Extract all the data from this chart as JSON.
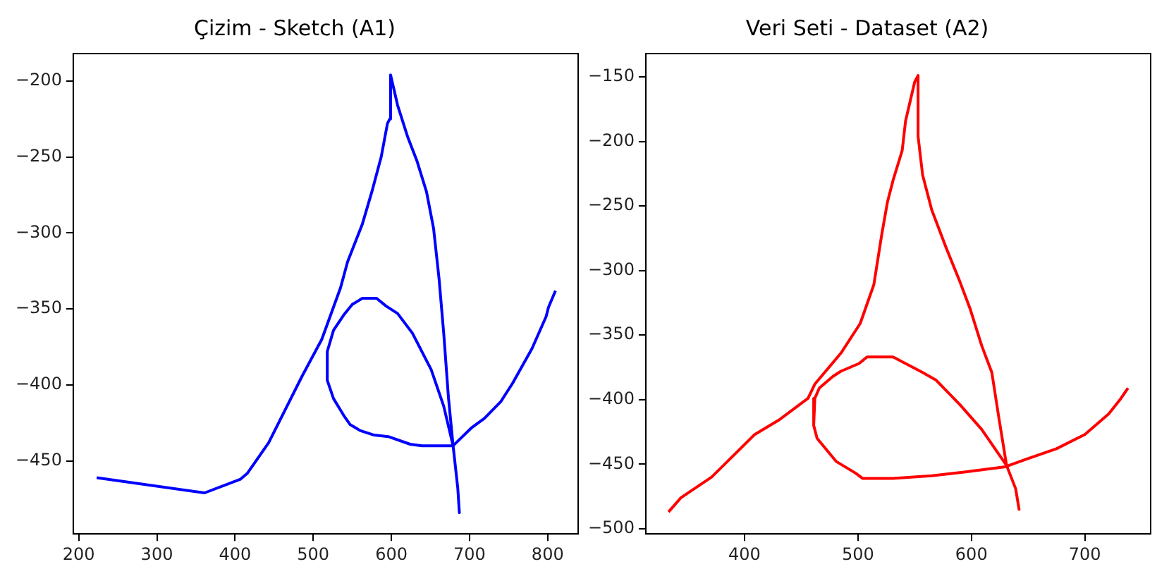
{
  "chart_data": [
    {
      "type": "line",
      "title": "Çizim - Sketch (A1)",
      "xlim": [
        193,
        839
      ],
      "ylim": [
        -498,
        -182
      ],
      "xticks": [
        200,
        300,
        400,
        500,
        600,
        700,
        800
      ],
      "yticks": [
        -450,
        -400,
        -350,
        -300,
        -250,
        -200
      ],
      "series": [
        {
          "color": "#0000ff",
          "x": [
            223,
            361,
            407,
            416,
            443,
            486,
            511,
            535,
            544,
            563,
            575,
            587,
            595,
            598,
            599,
            608,
            621,
            633,
            645,
            654,
            661,
            667,
            673,
            679,
            685,
            687,
            685,
            679,
            651,
            639,
            624,
            596,
            578,
            560,
            547,
            539,
            526,
            518,
            518,
            526,
            539,
            550,
            563,
            581,
            593,
            608,
            627,
            651,
            667,
            679,
            703,
            719,
            740,
            755,
            780,
            798,
            801,
            810
          ],
          "values": [
            -461,
            -471,
            -462,
            -458,
            -438,
            -394,
            -370,
            -336,
            -319,
            -294,
            -273,
            -250,
            -228,
            -225,
            -196,
            -216,
            -237,
            -253,
            -273,
            -297,
            -330,
            -366,
            -408,
            -440,
            -468,
            -484,
            -468,
            -440,
            -440,
            -440,
            -439,
            -434,
            -433,
            -430,
            -426,
            -420,
            -409,
            -397,
            -378,
            -364,
            -354,
            -347,
            -343,
            -343,
            -348,
            -353,
            -366,
            -390,
            -414,
            -440,
            -428,
            -422,
            -411,
            -399,
            -376,
            -355,
            -349,
            -338
          ]
        }
      ]
    },
    {
      "type": "line",
      "title": "Veri Seti - Dataset (A2)",
      "xlim": [
        313,
        758
      ],
      "ylim": [
        -504,
        -132
      ],
      "xticks": [
        400,
        500,
        600,
        700
      ],
      "yticks": [
        -500,
        -450,
        -400,
        -350,
        -300,
        -250,
        -200,
        -150
      ],
      "series": [
        {
          "color": "#ff0000",
          "x": [
            333,
            344,
            371,
            409,
            430,
            456,
            462,
            485,
            502,
            514,
            521,
            526,
            531,
            539,
            542,
            550,
            553,
            553,
            557,
            565,
            578,
            590,
            599,
            609,
            618,
            624,
            631,
            639,
            642,
            639,
            631,
            609,
            590,
            569,
            557,
            531,
            508,
            501,
            485,
            478,
            466,
            462,
            461,
            464,
            481,
            498,
            504,
            531,
            565,
            595,
            630,
            649,
            675,
            700,
            721,
            731,
            738
          ],
          "values": [
            -487,
            -476,
            -460,
            -427,
            -416,
            -399,
            -388,
            -364,
            -341,
            -311,
            -272,
            -247,
            -230,
            -207,
            -184,
            -154,
            -149,
            -196,
            -226,
            -253,
            -283,
            -309,
            -330,
            -358,
            -379,
            -413,
            -451,
            -469,
            -485,
            -469,
            -451,
            -423,
            -404,
            -385,
            -379,
            -367,
            -367,
            -372,
            -378,
            -382,
            -391,
            -399,
            -420,
            -430,
            -448,
            -457,
            -461,
            -461,
            -459,
            -456,
            -452,
            -446,
            -438,
            -427,
            -411,
            -400,
            -391
          ]
        }
      ]
    }
  ]
}
